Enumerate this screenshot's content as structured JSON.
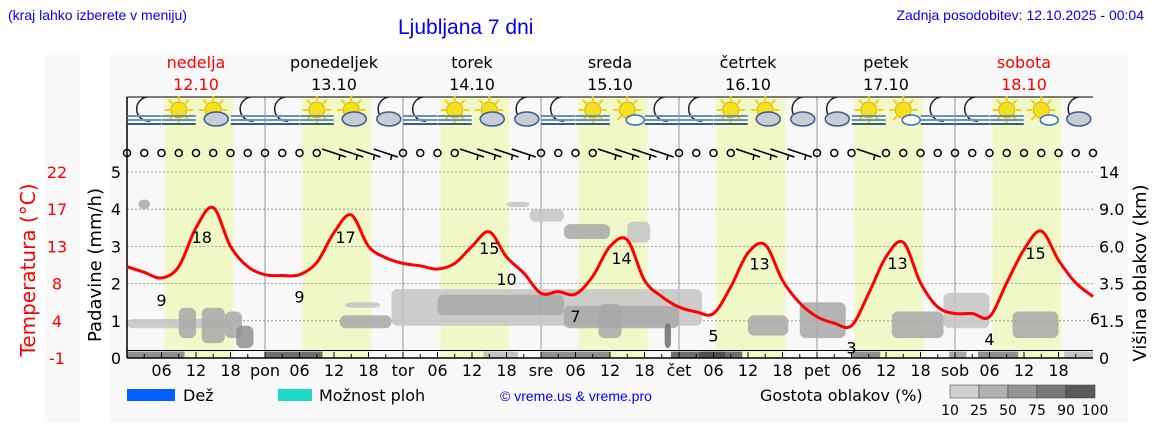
{
  "header": {
    "hint": "(kraj lahko izberete v meniju)",
    "title": "Ljubljana 7 dni",
    "updated": "Zadnja posodobitev: 12.10.2025 - 00:04"
  },
  "colors": {
    "temperature": "#ff0000",
    "daylight": "#f0f8c8",
    "weekend": "#ff0000",
    "link": "#0000ff",
    "rain": "#0060ff",
    "showers": "#20d8c8"
  },
  "days": [
    {
      "name": "nedelja",
      "date": "12.10",
      "weekend": true,
      "abbr": ""
    },
    {
      "name": "ponedeljek",
      "date": "13.10",
      "weekend": false,
      "abbr": "pon"
    },
    {
      "name": "torek",
      "date": "14.10",
      "weekend": false,
      "abbr": "tor"
    },
    {
      "name": "sreda",
      "date": "15.10",
      "weekend": false,
      "abbr": "sre"
    },
    {
      "name": "četrtek",
      "date": "16.10",
      "weekend": false,
      "abbr": "čet"
    },
    {
      "name": "petek",
      "date": "17.10",
      "weekend": false,
      "abbr": "pet"
    },
    {
      "name": "sobota",
      "date": "18.10",
      "weekend": true,
      "abbr": "sob"
    }
  ],
  "weather_icons": [
    [
      "moon-fog",
      "sun-fog",
      "sun-cloud",
      "moon-fog"
    ],
    [
      "moon-fog",
      "sun-fog",
      "sun-cloud",
      "moon-cloud"
    ],
    [
      "moon-fog",
      "sun-fog",
      "sun-cloud",
      "moon-cloud"
    ],
    [
      "moon-fog",
      "sun-fog",
      "sun-small-cloud",
      "moon-fog"
    ],
    [
      "moon-fog",
      "sun-fog",
      "sun-cloud",
      "moon-cloud"
    ],
    [
      "moon-cloud",
      "sun-fog",
      "sun-small-cloud",
      "moon-fog"
    ],
    [
      "moon-fog",
      "sun-fog",
      "sun-small-cloud",
      "moon-cloud"
    ]
  ],
  "wind_barbs_hours": [
    36,
    39,
    42,
    45,
    60,
    63,
    66,
    69,
    84,
    87,
    90,
    93,
    108,
    111,
    114,
    117,
    129
  ],
  "chart_data": {
    "type": "line",
    "time_step_hours": 3,
    "x_tick_labels": [
      "06",
      "12",
      "18"
    ],
    "temperature": {
      "label": "Temperatura (°C)",
      "ticks": [
        22,
        17,
        13,
        8,
        4,
        -1
      ],
      "range": [
        -1,
        22
      ],
      "values": [
        10.3,
        9.6,
        8.9,
        10.3,
        15.1,
        17.6,
        12.8,
        10.3,
        9.3,
        9.2,
        9.3,
        10.8,
        14.5,
        16.7,
        12.8,
        11.4,
        10.7,
        10.4,
        10.0,
        10.7,
        12.8,
        14.6,
        11.5,
        9.5,
        7.0,
        7.2,
        6.9,
        9.1,
        12.8,
        13.6,
        8.6,
        6.6,
        5.3,
        4.7,
        4.5,
        7.8,
        12.0,
        13.0,
        8.6,
        5.8,
        4.1,
        3.3,
        3.0,
        7.0,
        11.5,
        13.3,
        8.3,
        5.3,
        4.5,
        4.5,
        4.1,
        8.3,
        12.4,
        14.7,
        11.1,
        8.3,
        6.6
      ],
      "annotations": [
        {
          "hour": 6,
          "value": "9",
          "pos": "below"
        },
        {
          "hour": 13,
          "value": "18",
          "pos": "above"
        },
        {
          "hour": 30,
          "value": "9",
          "pos": "below"
        },
        {
          "hour": 38,
          "value": "17",
          "pos": "above"
        },
        {
          "hour": 66,
          "value": "10",
          "pos": "below"
        },
        {
          "hour": 63,
          "value": "15",
          "pos": "above"
        },
        {
          "hour": 78,
          "value": "7",
          "pos": "below"
        },
        {
          "hour": 86,
          "value": "14",
          "pos": "above"
        },
        {
          "hour": 102,
          "value": "5",
          "pos": "below"
        },
        {
          "hour": 110,
          "value": "13",
          "pos": "above"
        },
        {
          "hour": 126,
          "value": "3",
          "pos": "below"
        },
        {
          "hour": 134,
          "value": "13",
          "pos": "above"
        },
        {
          "hour": 150,
          "value": "4",
          "pos": "below"
        },
        {
          "hour": 158,
          "value": "15",
          "pos": "above"
        },
        {
          "hour": 168,
          "value": "6",
          "pos": "below"
        }
      ]
    },
    "precipitation": {
      "label": "Padavine (mm/h)",
      "ticks": [
        0,
        1,
        2,
        3,
        4,
        5
      ],
      "range": [
        0,
        5
      ],
      "rain": [],
      "showers": []
    },
    "cloud_height": {
      "label": "Višina oblakov (km)",
      "ticks": [
        "0",
        "1.5",
        "3.5",
        "6.0",
        "9.0",
        "14"
      ]
    },
    "clouds": [
      {
        "t": [
          0,
          18
        ],
        "km": [
          1.2,
          1.6
        ],
        "density": 25
      },
      {
        "t": [
          2,
          4
        ],
        "km": [
          9.0,
          10.3
        ],
        "density": 50
      },
      {
        "t": [
          9,
          12
        ],
        "km": [
          0.8,
          2.2
        ],
        "density": 50
      },
      {
        "t": [
          13,
          17
        ],
        "km": [
          0.6,
          2.2
        ],
        "density": 50
      },
      {
        "t": [
          17,
          20
        ],
        "km": [
          0.8,
          2.0
        ],
        "density": 50
      },
      {
        "t": [
          19,
          22
        ],
        "km": [
          0.4,
          1.3
        ],
        "density": 75
      },
      {
        "t": [
          37,
          46
        ],
        "km": [
          1.2,
          1.8
        ],
        "density": 50
      },
      {
        "t": [
          38,
          44
        ],
        "km": [
          2.2,
          2.5
        ],
        "density": 25
      },
      {
        "t": [
          46,
          100
        ],
        "km": [
          1.3,
          3.2
        ],
        "density": 25
      },
      {
        "t": [
          54,
          76
        ],
        "km": [
          1.8,
          2.9
        ],
        "density": 50
      },
      {
        "t": [
          76,
          96
        ],
        "km": [
          1.2,
          2.3
        ],
        "density": 50
      },
      {
        "t": [
          66,
          70
        ],
        "km": [
          9.3,
          10
        ],
        "density": 25
      },
      {
        "t": [
          70,
          76
        ],
        "km": [
          8.0,
          9.0
        ],
        "density": 25
      },
      {
        "t": [
          76,
          84
        ],
        "km": [
          6.6,
          7.8
        ],
        "density": 50
      },
      {
        "t": [
          82,
          86
        ],
        "km": [
          0.8,
          2.4
        ],
        "density": 50
      },
      {
        "t": [
          87,
          91
        ],
        "km": [
          6.3,
          8.0
        ],
        "density": 25
      },
      {
        "t": [
          93.5,
          94.6
        ],
        "km": [
          0.4,
          1.4
        ],
        "density": 90
      },
      {
        "t": [
          108,
          115
        ],
        "km": [
          0.9,
          1.8
        ],
        "density": 50
      },
      {
        "t": [
          117,
          125
        ],
        "km": [
          0.8,
          2.5
        ],
        "density": 50
      },
      {
        "t": [
          133,
          142
        ],
        "km": [
          0.8,
          2.0
        ],
        "density": 50
      },
      {
        "t": [
          142,
          150
        ],
        "km": [
          1.2,
          3.0
        ],
        "density": 25
      },
      {
        "t": [
          154,
          162
        ],
        "km": [
          0.8,
          2.0
        ],
        "density": 50
      }
    ],
    "low_clouds": [
      {
        "t": [
          0,
          10
        ],
        "density": 75
      },
      {
        "t": [
          24,
          34
        ],
        "density": 90
      },
      {
        "t": [
          62,
          68
        ],
        "density": 25
      },
      {
        "t": [
          72,
          84
        ],
        "density": 75
      },
      {
        "t": [
          94.6,
          107
        ],
        "density": 90
      },
      {
        "t": [
          99.5,
          104
        ],
        "density": 100
      },
      {
        "t": [
          126,
          131
        ],
        "density": 75
      },
      {
        "t": [
          143,
          146
        ],
        "density": 50
      },
      {
        "t": [
          148,
          155
        ],
        "density": 75
      },
      {
        "t": [
          163,
          168
        ],
        "density": 25
      }
    ]
  },
  "legend": {
    "rain": "Dež",
    "showers": "Možnost ploh",
    "credit": "© vreme.us & vreme.pro",
    "cloud_density": "Gostota oblakov (%)",
    "density_levels": [
      "10",
      "25",
      "50",
      "75",
      "90",
      "100"
    ]
  }
}
